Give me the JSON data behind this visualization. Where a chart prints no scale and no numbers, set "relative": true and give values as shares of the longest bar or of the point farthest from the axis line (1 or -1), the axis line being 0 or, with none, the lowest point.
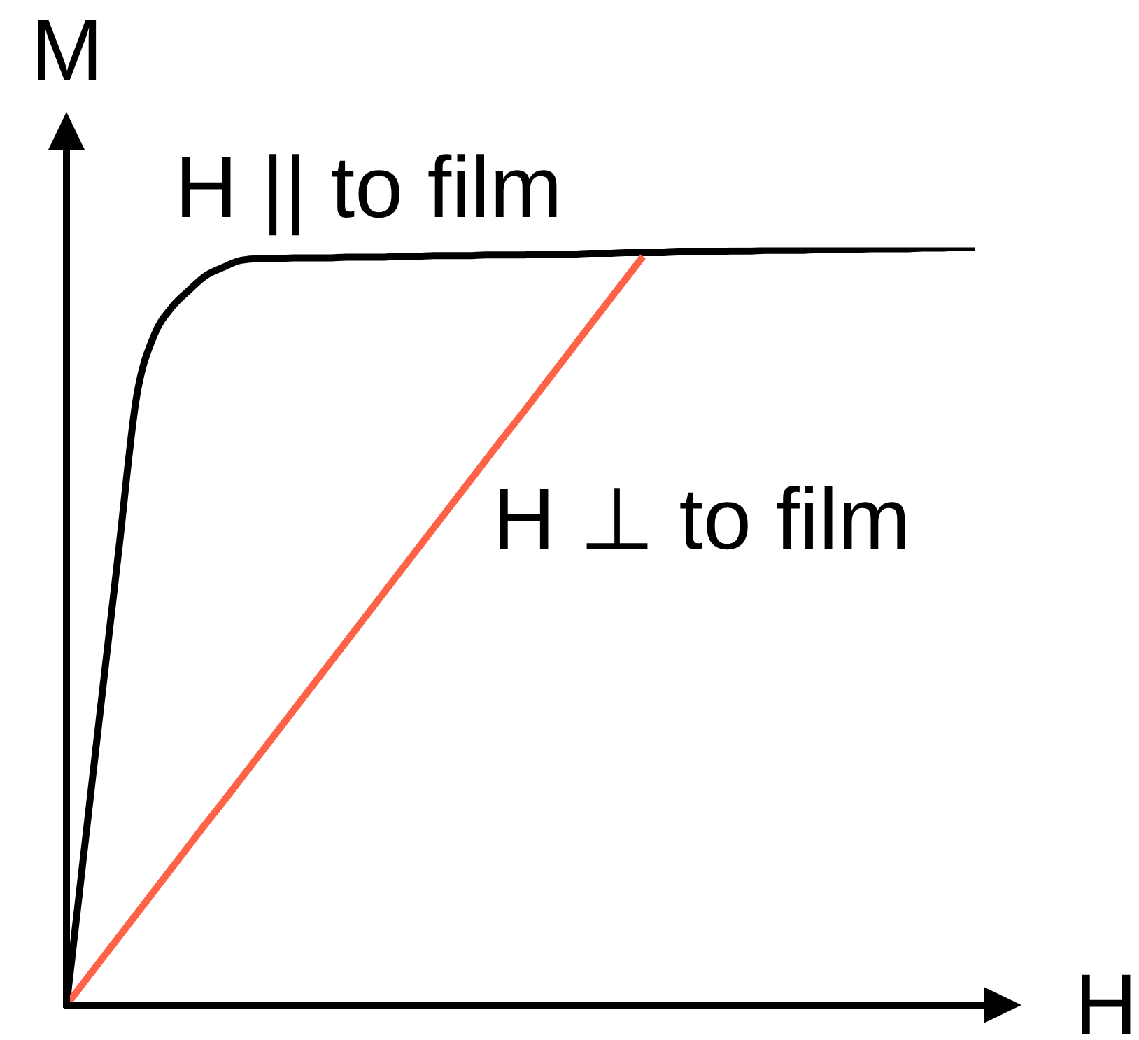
{
  "chart_data": {
    "type": "line",
    "relative": true,
    "xlabel": "H",
    "ylabel": "M",
    "categories": [
      null,
      null,
      null,
      null,
      null,
      null,
      null,
      null,
      null,
      null,
      null,
      null,
      null,
      null,
      null,
      null,
      null,
      null,
      null,
      null,
      null,
      null,
      null,
      null,
      null,
      null,
      null,
      null,
      null,
      null,
      null,
      null,
      null,
      null,
      null,
      null,
      null,
      null,
      null,
      null,
      null,
      null,
      null,
      null,
      null,
      null,
      null,
      null,
      null,
      null,
      null,
      null,
      null
    ],
    "series": [
      {
        "name": "H || to film",
        "color": "#000000",
        "values": [
          0,
          0.201,
          0.402,
          0.602,
          0.801,
          0.883,
          0.92,
          0.943,
          0.963,
          0.974,
          0.983,
          0.985,
          0.985,
          0.986,
          0.986,
          0.986,
          0.987,
          0.987,
          0.987,
          0.988,
          0.988,
          0.989,
          0.989,
          0.989,
          0.99,
          0.99,
          0.99,
          0.991,
          0.991,
          0.991,
          0.992,
          0.992,
          0.993,
          0.993,
          0.993,
          0.994,
          0.994,
          0.994,
          0.995,
          0.995,
          0.996,
          0.996,
          0.996,
          0.997,
          0.997,
          0.997,
          0.998,
          0.998,
          0.998,
          0.999,
          0.999,
          1,
          1
        ]
      },
      {
        "name": "H ⊥ to film",
        "color": "#ff6347",
        "values": [
          0,
          0.03,
          0.06,
          0.09,
          0.12,
          0.15,
          0.18,
          0.21,
          0.24,
          0.269,
          0.299,
          0.329,
          0.359,
          0.389,
          0.419,
          0.449,
          0.479,
          0.509,
          0.539,
          0.569,
          0.599,
          0.629,
          0.659,
          0.689,
          0.719,
          0.749,
          0.778,
          0.808,
          0.838,
          0.868,
          0.898,
          0.928,
          0.958,
          0.988,
          null,
          null,
          null,
          null,
          null,
          null,
          null,
          null,
          null,
          null,
          null,
          null,
          null,
          null,
          null,
          null,
          null,
          null,
          null
        ]
      }
    ]
  }
}
